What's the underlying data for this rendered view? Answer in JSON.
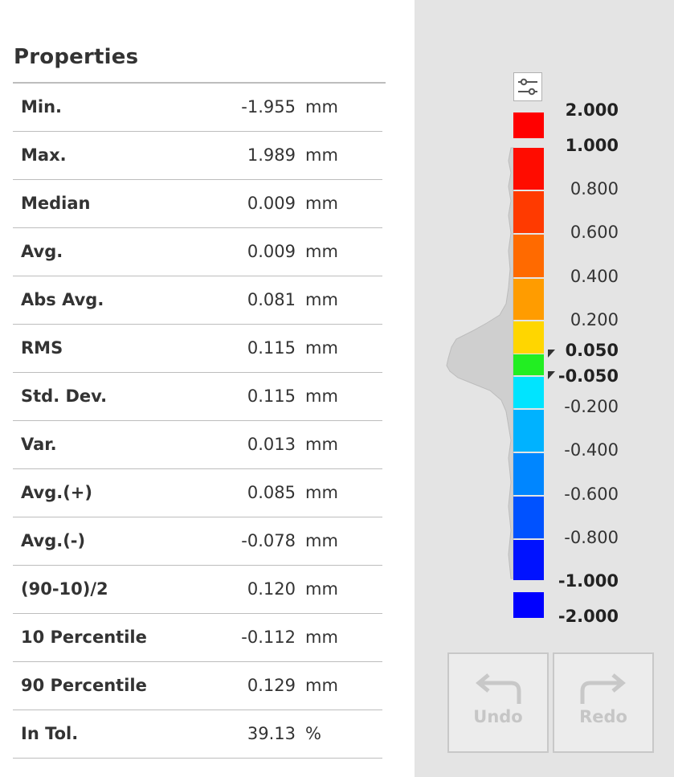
{
  "panel_title": "Properties",
  "properties": [
    {
      "label": "Min.",
      "value": "-1.955",
      "unit": "mm"
    },
    {
      "label": "Max.",
      "value": "1.989",
      "unit": "mm"
    },
    {
      "label": "Median",
      "value": "0.009",
      "unit": "mm"
    },
    {
      "label": "Avg.",
      "value": "0.009",
      "unit": "mm"
    },
    {
      "label": "Abs Avg.",
      "value": "0.081",
      "unit": "mm"
    },
    {
      "label": "RMS",
      "value": "0.115",
      "unit": "mm"
    },
    {
      "label": "Std. Dev.",
      "value": "0.115",
      "unit": "mm"
    },
    {
      "label": "Var.",
      "value": "0.013",
      "unit": "mm"
    },
    {
      "label": "Avg.(+)",
      "value": "0.085",
      "unit": "mm"
    },
    {
      "label": "Avg.(-)",
      "value": "-0.078",
      "unit": "mm"
    },
    {
      "label": "(90-10)/2",
      "value": "0.120",
      "unit": "mm"
    },
    {
      "label": "10 Percentile",
      "value": "-0.112",
      "unit": "mm"
    },
    {
      "label": "90 Percentile",
      "value": "0.129",
      "unit": "mm"
    },
    {
      "label": "In Tol.",
      "value": "39.13",
      "unit": "%"
    }
  ],
  "color_scale": {
    "labels": [
      {
        "text": "2.000",
        "bold": true
      },
      {
        "text": "1.000",
        "bold": true
      },
      {
        "text": "0.800",
        "bold": false
      },
      {
        "text": "0.600",
        "bold": false
      },
      {
        "text": "0.400",
        "bold": false
      },
      {
        "text": "0.200",
        "bold": false
      },
      {
        "text": "0.050",
        "bold": true
      },
      {
        "text": "-0.050",
        "bold": true
      },
      {
        "text": "-0.200",
        "bold": false
      },
      {
        "text": "-0.400",
        "bold": false
      },
      {
        "text": "-0.600",
        "bold": false
      },
      {
        "text": "-0.800",
        "bold": false
      },
      {
        "text": "-1.000",
        "bold": true
      },
      {
        "text": "-2.000",
        "bold": true
      }
    ],
    "colors": {
      "above_max": "#ff0000",
      "below_min": "#0000ff",
      "tolerance": "#22ee22"
    }
  },
  "buttons": {
    "undo_label": "Undo",
    "redo_label": "Redo"
  },
  "icons": {
    "settings": "sliders-icon",
    "undo": "undo-arrow-icon",
    "redo": "redo-arrow-icon",
    "tolerance_marker": "triangle-pointer-icon"
  }
}
